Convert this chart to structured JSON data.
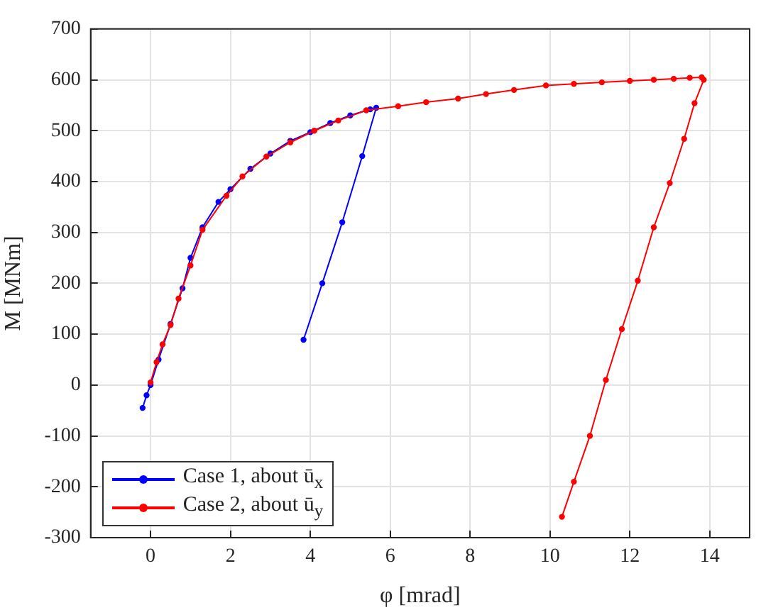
{
  "chart_data": {
    "type": "line",
    "xlabel": "φ [mrad]",
    "ylabel": "M [MNm]",
    "xlim": [
      -1.5,
      15
    ],
    "xticks": [
      0,
      2,
      4,
      6,
      8,
      10,
      12,
      14
    ],
    "ylim": [
      -300,
      700
    ],
    "yticks": [
      -300,
      -200,
      -100,
      0,
      100,
      200,
      300,
      400,
      500,
      600,
      700
    ],
    "grid": true,
    "legend": "bottom left",
    "marker": "circle",
    "line_style": "solid",
    "series": [
      {
        "name": "Case 1, about ū$_{x}$",
        "color": "#0000ff",
        "x": [
          -0.2,
          -0.1,
          0,
          0.2,
          0.5,
          0.8,
          1,
          1.3,
          1.7,
          2,
          2.5,
          3,
          3.5,
          4,
          4.5,
          5,
          5.5,
          5.65,
          5.3,
          4.8,
          4.3,
          3.83
        ],
        "values": [
          -45,
          -20,
          0,
          50,
          120,
          190,
          250,
          310,
          360,
          385,
          425,
          455,
          480,
          497,
          515,
          530,
          542,
          545,
          450,
          320,
          200,
          89
        ]
      },
      {
        "name": "Case 2, about ū$_{y}$",
        "color": "#ff0000",
        "x": [
          0,
          0.15,
          0.3,
          0.5,
          0.7,
          1,
          1.3,
          1.9,
          2.3,
          2.9,
          3.5,
          4.1,
          4.7,
          5.4,
          6.2,
          6.9,
          7.7,
          8.4,
          9.1,
          9.9,
          10.6,
          11.3,
          12,
          12.6,
          13.1,
          13.5,
          13.8,
          13.85,
          13.62,
          13.36,
          13,
          12.6,
          12.2,
          11.8,
          11.4,
          11,
          10.6,
          10.3
        ],
        "values": [
          5,
          45,
          80,
          118,
          170,
          235,
          305,
          372,
          410,
          449,
          477,
          500,
          520,
          540,
          548,
          556,
          563,
          572,
          580,
          589,
          592,
          595,
          598,
          600,
          602,
          604,
          605,
          600,
          554,
          484,
          397,
          310,
          205,
          110,
          10,
          -100,
          -190,
          -259
        ]
      }
    ]
  }
}
